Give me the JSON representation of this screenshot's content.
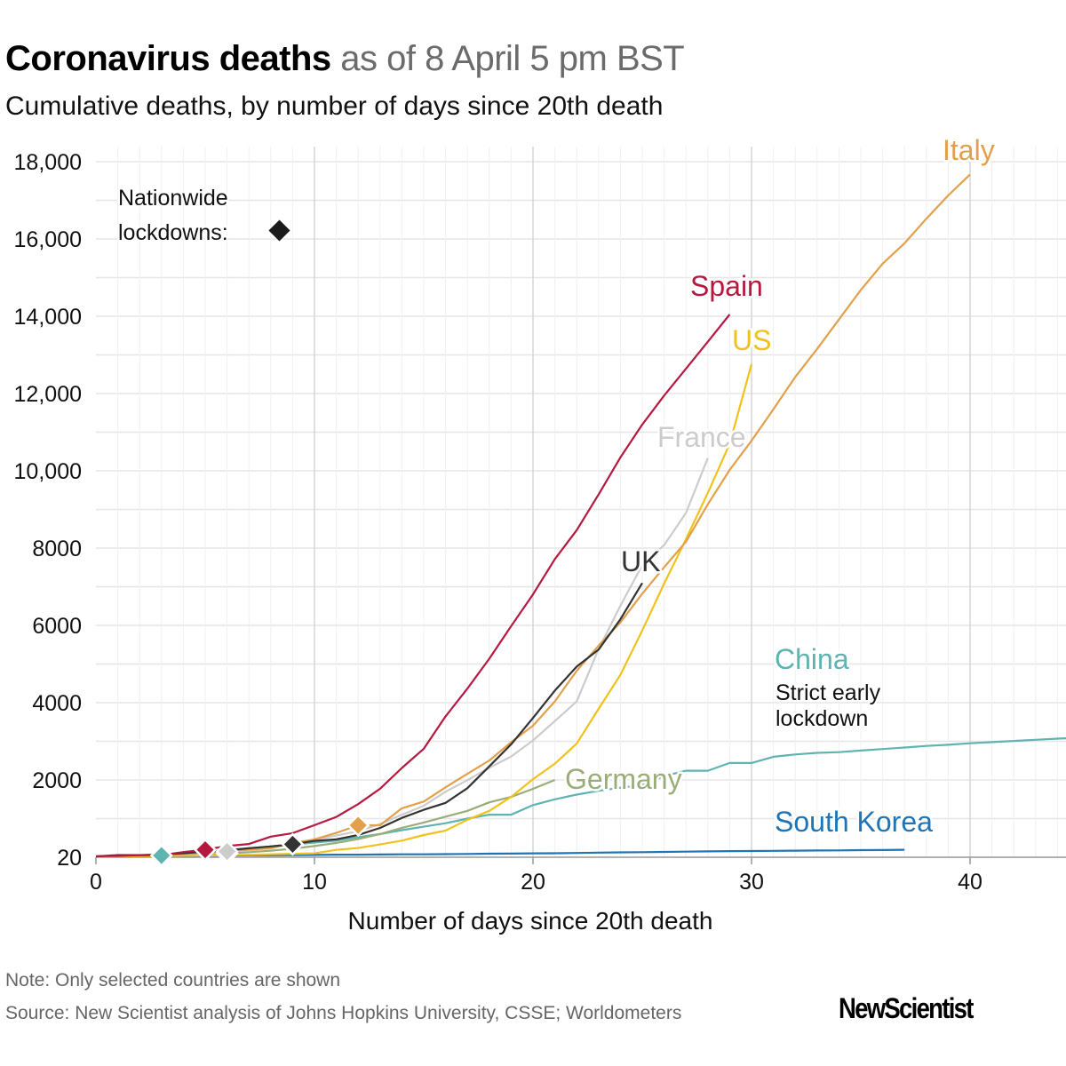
{
  "title": {
    "bold": "Coronavirus deaths",
    "rest": "as of 8 April 5 pm BST"
  },
  "subtitle": "Cumulative deaths, by number of days since 20th death",
  "legend": {
    "line1": "Nationwide",
    "line2": "lockdowns:",
    "marker": "diamond-icon",
    "marker_color": "#1a1a1a"
  },
  "note": "Note: Only selected countries are shown",
  "source": "Source: New Scientist analysis of Johns Hopkins University, CSSE; Worldometers",
  "logo": "NewScientist",
  "chart_data": {
    "type": "line",
    "xlabel": "Number of days since 20th death",
    "ylabel": "",
    "xlim": [
      0,
      44.4
    ],
    "ylim": [
      0,
      18000
    ],
    "grid": true,
    "x_ticks": [
      {
        "value": 0,
        "label": "0"
      },
      {
        "value": 10,
        "label": "10"
      },
      {
        "value": 20,
        "label": "20"
      },
      {
        "value": 30,
        "label": "30"
      },
      {
        "value": 40,
        "label": "40"
      }
    ],
    "y_ticks": [
      {
        "value": 20,
        "label": "20"
      },
      {
        "value": 2000,
        "label": "2000"
      },
      {
        "value": 4000,
        "label": "4000"
      },
      {
        "value": 6000,
        "label": "6000"
      },
      {
        "value": 8000,
        "label": "8000"
      },
      {
        "value": 10000,
        "label": "10,000"
      },
      {
        "value": 12000,
        "label": "12,000"
      },
      {
        "value": 14000,
        "label": "14,000"
      },
      {
        "value": 16000,
        "label": "16,000"
      },
      {
        "value": 18000,
        "label": "18,000"
      }
    ],
    "series": [
      {
        "name": "South Korea",
        "color": "#1f74b5",
        "values": [
          20,
          22,
          28,
          32,
          35,
          42,
          44,
          50,
          51,
          54,
          60,
          66,
          67,
          72,
          75,
          75,
          81,
          84,
          91,
          94,
          102,
          104,
          111,
          120,
          126,
          131,
          139,
          144,
          152,
          158,
          162,
          165,
          169,
          174,
          177,
          183,
          186,
          192
        ]
      },
      {
        "name": "China",
        "color": "#5fb3b0",
        "note": "Strict early lockdown",
        "lockdown_day": 3,
        "values": [
          20,
          26,
          30,
          45,
          110,
          150,
          190,
          230,
          280,
          330,
          380,
          430,
          520,
          600,
          700,
          790,
          880,
          1000,
          1100,
          1100,
          1350,
          1500,
          1620,
          1720,
          1800,
          1870,
          2100,
          2240,
          2240,
          2440,
          2440,
          2600,
          2660,
          2700,
          2720,
          2760,
          2800,
          2840,
          2880,
          2910,
          2950,
          2980,
          3010,
          3040,
          3070,
          3090
        ]
      },
      {
        "name": "Germany",
        "color": "#9aad78",
        "lockdown_day": 6,
        "values": [
          20,
          25,
          30,
          45,
          65,
          85,
          100,
          130,
          170,
          220,
          290,
          370,
          470,
          600,
          760,
          900,
          1050,
          1200,
          1420,
          1560,
          1770,
          2000
        ]
      },
      {
        "name": "US",
        "color": "#f1c21b",
        "values": [
          20,
          22,
          25,
          30,
          38,
          45,
          55,
          65,
          75,
          90,
          100,
          190,
          240,
          330,
          430,
          575,
          690,
          970,
          1200,
          1560,
          2020,
          2420,
          2940,
          3840,
          4720,
          5870,
          7080,
          8230,
          9430,
          10700,
          12760
        ]
      },
      {
        "name": "France",
        "color": "#cccccc",
        "lockdown_day": 6,
        "values": [
          20,
          30,
          48,
          61,
          79,
          91,
          148,
          175,
          244,
          372,
          450,
          562,
          674,
          860,
          1100,
          1331,
          1696,
          1995,
          2314,
          2606,
          3024,
          3523,
          4032,
          5387,
          6507,
          7560,
          8078,
          8911,
          10328
        ]
      },
      {
        "name": "Italy",
        "color": "#e3a04a",
        "lockdown_day": 12,
        "values": [
          21,
          29,
          34,
          52,
          79,
          107,
          148,
          197,
          233,
          366,
          463,
          631,
          827,
          827,
          1266,
          1441,
          1809,
          2158,
          2503,
          2978,
          3405,
          4032,
          4825,
          5476,
          6077,
          6820,
          7503,
          8165,
          9134,
          10023,
          10779,
          11591,
          12428,
          13155,
          13915,
          14681,
          15362,
          15887,
          16523,
          17127,
          17669
        ]
      },
      {
        "name": "UK",
        "color": "#333333",
        "lockdown_day": 9,
        "values": [
          21,
          56,
          56,
          72,
          104,
          144,
          177,
          233,
          281,
          335,
          422,
          465,
          578,
          759,
          1019,
          1228,
          1408,
          1789,
          2352,
          2921,
          3605,
          4313,
          4934,
          5373,
          6159,
          7097
        ]
      },
      {
        "name": "Spain",
        "color": "#b5193f",
        "lockdown_day": 5,
        "values": [
          28,
          35,
          54,
          55,
          133,
          195,
          289,
          342,
          533,
          623,
          830,
          1043,
          1375,
          1772,
          2311,
          2808,
          3647,
          4365,
          5138,
          5982,
          6803,
          7716,
          8464,
          9387,
          10348,
          11198,
          11947,
          12641,
          13341,
          14045
        ]
      }
    ]
  }
}
